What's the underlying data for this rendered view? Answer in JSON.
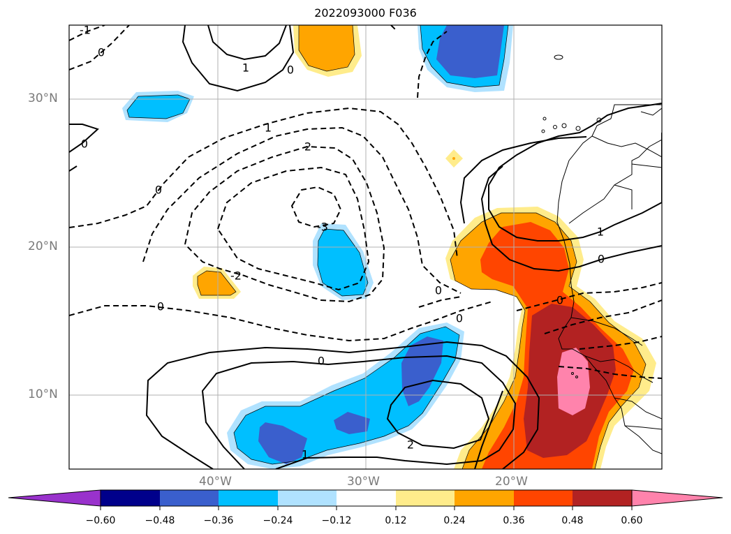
{
  "title": "2022093000 F036",
  "lat_labels": [
    "30°N",
    "20°N",
    "10°N"
  ],
  "lon_labels": [
    "40°W",
    "30°W",
    "20°W"
  ],
  "contour_labels": [
    "-1",
    "0",
    "1",
    "0",
    "0",
    "1",
    "2",
    "0",
    "-3",
    "-2",
    "0",
    "0",
    "2",
    "1",
    "1",
    "0",
    "0",
    "0",
    "0"
  ],
  "colorbar": {
    "ticks": [
      "−0.60",
      "−0.48",
      "−0.36",
      "−0.24",
      "−0.12",
      "0.12",
      "0.24",
      "0.36",
      "0.48",
      "0.60"
    ],
    "colors": [
      "#9932cc",
      "#00008b",
      "#3a5fcd",
      "#00bfff",
      "#b0e2ff",
      "#ffffff",
      "#ffec8b",
      "#ffa500",
      "#ff4500",
      "#b22222",
      "#ff83ac"
    ]
  }
}
